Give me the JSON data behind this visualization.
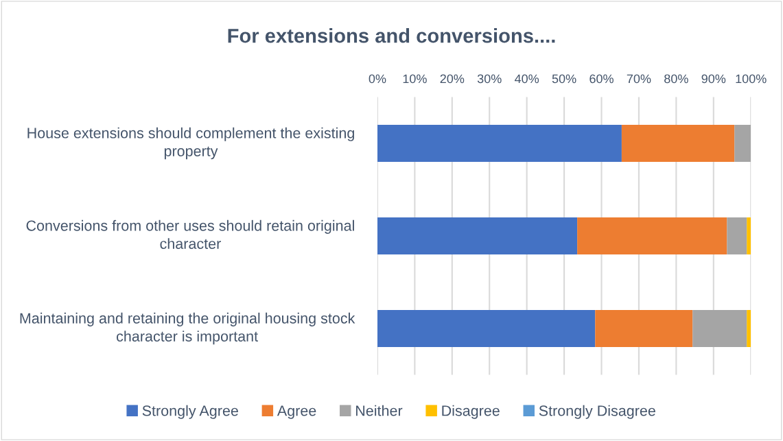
{
  "chart_data": {
    "type": "bar",
    "orientation": "horizontal",
    "stacked": true,
    "title": "For extensions and conversions....",
    "categories": [
      "House extensions should complement the existing property",
      "Conversions from other uses should retain original character",
      "Maintaining and retaining the original housing stock character is important"
    ],
    "series": [
      {
        "name": "Strongly Agree",
        "color": "#4472c4",
        "values": [
          65.4,
          53.5,
          58.3
        ]
      },
      {
        "name": "Agree",
        "color": "#ed7d31",
        "values": [
          30.2,
          40.1,
          26.1
        ]
      },
      {
        "name": "Neither",
        "color": "#a5a5a5",
        "values": [
          4.4,
          5.3,
          14.5
        ]
      },
      {
        "name": "Disagree",
        "color": "#ffc000",
        "values": [
          0,
          1.1,
          1.1
        ]
      },
      {
        "name": "Strongly Disagree",
        "color": "#5b9bd5",
        "values": [
          0,
          0,
          0
        ]
      }
    ],
    "xlim": [
      0,
      100
    ],
    "xticks": [
      {
        "value": 0,
        "label": "0%"
      },
      {
        "value": 10,
        "label": "10%"
      },
      {
        "value": 20,
        "label": "20%"
      },
      {
        "value": 30,
        "label": "30%"
      },
      {
        "value": 40,
        "label": "40%"
      },
      {
        "value": 50,
        "label": "50%"
      },
      {
        "value": 60,
        "label": "60%"
      },
      {
        "value": 70,
        "label": "70%"
      },
      {
        "value": 80,
        "label": "80%"
      },
      {
        "value": 90,
        "label": "90%"
      },
      {
        "value": 100,
        "label": "100%"
      }
    ],
    "grid": "x",
    "legend": "bottom"
  }
}
